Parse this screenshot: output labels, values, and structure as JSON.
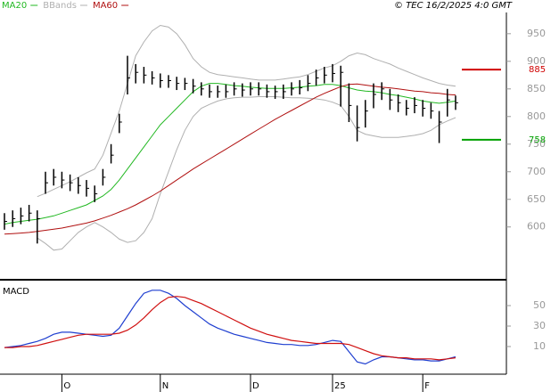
{
  "header": {
    "copyright": "© TEC 16/2/2025 4:0 GMT"
  },
  "chart_data": [
    {
      "type": "stock",
      "ylim": [
        506,
        982
      ],
      "yticks": [
        600,
        650,
        700,
        750,
        800,
        850,
        900,
        950
      ],
      "bar_color": "#000000",
      "close": [
        610,
        615,
        620,
        625,
        615,
        680,
        690,
        685,
        680,
        675,
        670,
        660,
        690,
        730,
        790,
        870,
        880,
        875,
        870,
        865,
        865,
        860,
        860,
        855,
        850,
        845,
        845,
        845,
        850,
        848,
        850,
        850,
        845,
        845,
        845,
        850,
        852,
        860,
        870,
        875,
        878,
        880,
        820,
        780,
        810,
        840,
        850,
        830,
        825,
        815,
        820,
        815,
        810,
        790,
        830,
        825
      ],
      "high": [
        625,
        630,
        635,
        640,
        630,
        700,
        705,
        700,
        695,
        690,
        685,
        675,
        705,
        750,
        805,
        910,
        895,
        890,
        882,
        878,
        875,
        872,
        870,
        868,
        862,
        858,
        856,
        858,
        862,
        860,
        862,
        862,
        858,
        856,
        858,
        862,
        866,
        875,
        885,
        890,
        895,
        892,
        860,
        820,
        830,
        860,
        862,
        850,
        840,
        830,
        835,
        830,
        825,
        810,
        850,
        838
      ],
      "low": [
        595,
        600,
        605,
        610,
        570,
        660,
        675,
        670,
        665,
        660,
        655,
        645,
        675,
        715,
        770,
        840,
        860,
        860,
        858,
        852,
        852,
        848,
        848,
        842,
        838,
        834,
        834,
        834,
        838,
        836,
        838,
        838,
        834,
        832,
        832,
        838,
        840,
        846,
        856,
        860,
        862,
        818,
        790,
        755,
        780,
        815,
        830,
        812,
        808,
        802,
        806,
        800,
        796,
        752,
        800,
        812
      ],
      "series": [
        {
          "name": "MA20",
          "color": "#22b822",
          "values": [
            605,
            608,
            610,
            612,
            614,
            617,
            620,
            625,
            630,
            635,
            640,
            648,
            656,
            668,
            685,
            705,
            725,
            745,
            765,
            785,
            800,
            815,
            830,
            845,
            855,
            860,
            860,
            858,
            856,
            855,
            853,
            852,
            851,
            851,
            851,
            852,
            853,
            855,
            856,
            858,
            858,
            856,
            852,
            848,
            846,
            845,
            843,
            840,
            838,
            835,
            832,
            828,
            826,
            824,
            826,
            828
          ]
        },
        {
          "name": "BBands",
          "color": "#b0b0b0",
          "values": [
            null,
            null,
            null,
            null,
            655,
            661,
            668,
            675,
            682,
            690,
            698,
            705,
            730,
            770,
            810,
            860,
            910,
            935,
            955,
            965,
            962,
            950,
            930,
            905,
            890,
            880,
            876,
            874,
            872,
            870,
            868,
            866,
            866,
            866,
            868,
            870,
            872,
            876,
            882,
            888,
            892,
            900,
            910,
            915,
            912,
            905,
            900,
            895,
            888,
            882,
            876,
            870,
            865,
            860,
            857,
            855
          ],
          "lower": [
            null,
            null,
            null,
            null,
            580,
            570,
            558,
            560,
            575,
            590,
            600,
            608,
            600,
            590,
            578,
            572,
            575,
            590,
            615,
            660,
            700,
            740,
            775,
            800,
            815,
            822,
            828,
            832,
            834,
            835,
            835,
            836,
            836,
            836,
            835,
            834,
            834,
            833,
            832,
            830,
            826,
            820,
            800,
            775,
            768,
            765,
            762,
            762,
            762,
            764,
            766,
            769,
            775,
            785,
            792,
            798
          ]
        },
        {
          "name": "MA60",
          "color": "#b01010",
          "values": [
            587,
            588,
            589,
            590,
            592,
            594,
            596,
            598,
            601,
            604,
            607,
            611,
            616,
            621,
            627,
            633,
            640,
            648,
            656,
            665,
            675,
            685,
            695,
            705,
            714,
            723,
            732,
            741,
            750,
            759,
            768,
            777,
            786,
            795,
            803,
            811,
            819,
            827,
            835,
            842,
            848,
            854,
            858,
            859,
            857,
            855,
            853,
            852,
            850,
            848,
            846,
            845,
            843,
            842,
            840,
            839
          ]
        }
      ],
      "markers": [
        {
          "value": 885,
          "color": "#d00000"
        },
        {
          "value": 758,
          "color": "#00a000"
        }
      ]
    },
    {
      "type": "macd",
      "title": "MACD",
      "ylim": [
        -17,
        73.5
      ],
      "yticks": [
        10,
        30,
        50
      ],
      "categories": [
        null,
        null,
        null,
        null,
        null,
        null,
        null,
        "O",
        null,
        null,
        null,
        null,
        null,
        null,
        null,
        null,
        null,
        null,
        null,
        "N",
        null,
        null,
        null,
        null,
        null,
        null,
        null,
        null,
        null,
        null,
        "D",
        null,
        null,
        null,
        null,
        null,
        null,
        null,
        null,
        null,
        "25",
        null,
        null,
        null,
        null,
        null,
        null,
        null,
        null,
        null,
        null,
        "F",
        null,
        null,
        null,
        null
      ],
      "series": [
        {
          "color": "#1f3fd0",
          "values": [
            9,
            10,
            11,
            13,
            15,
            18,
            22,
            24,
            24,
            23,
            22,
            21,
            20,
            21,
            28,
            40,
            52,
            62,
            65,
            65,
            62,
            57,
            50,
            44,
            38,
            32,
            28,
            25,
            22,
            20,
            18,
            16,
            14,
            13,
            12,
            12,
            11,
            11,
            12,
            14,
            16,
            15,
            5,
            -5,
            -7,
            -3,
            0,
            0,
            -1,
            -2,
            -3,
            -3,
            -4,
            -4,
            -2,
            0
          ]
        },
        {
          "color": "#d01010",
          "values": [
            9,
            9,
            10,
            10,
            11,
            13,
            15,
            17,
            19,
            21,
            22,
            22,
            22,
            22,
            23,
            26,
            31,
            38,
            46,
            53,
            58,
            59,
            58,
            55,
            52,
            48,
            44,
            40,
            36,
            32,
            28,
            25,
            22,
            20,
            18,
            16,
            15,
            14,
            13,
            13,
            13,
            13,
            12,
            9,
            6,
            3,
            1,
            0,
            -1,
            -1,
            -2,
            -2,
            -2,
            -3,
            -2,
            -1
          ]
        }
      ]
    }
  ]
}
